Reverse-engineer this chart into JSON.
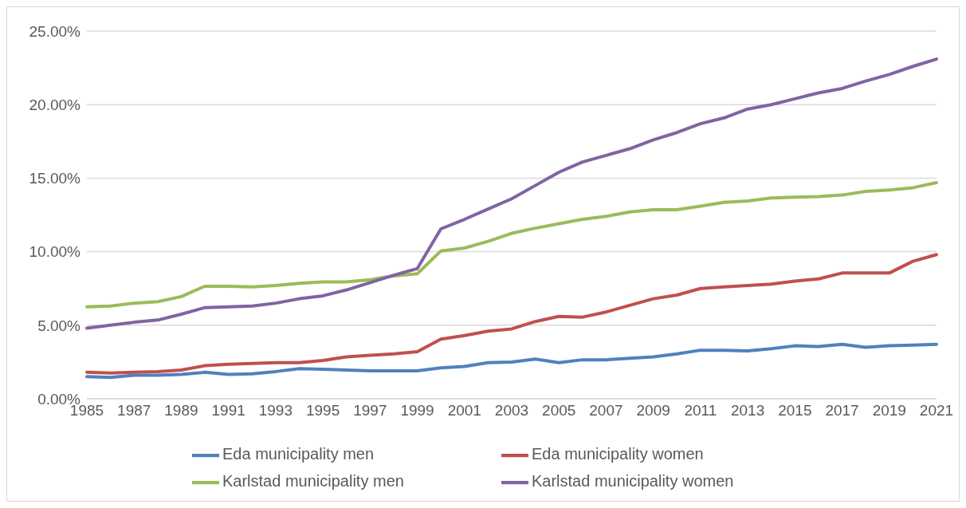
{
  "chart_data": {
    "type": "line",
    "categories": [
      "1985",
      null,
      "1987",
      null,
      "1989",
      null,
      "1991",
      null,
      "1993",
      null,
      "1995",
      null,
      "1997",
      null,
      "1999",
      null,
      "2001",
      null,
      "2003",
      null,
      "2005",
      null,
      "2007",
      null,
      "2009",
      null,
      "2011",
      null,
      "2013",
      null,
      "2015",
      null,
      "2017",
      null,
      "2019",
      null,
      "2021"
    ],
    "series": [
      {
        "name": "Eda municipality men",
        "color": "#4f81bd",
        "values": [
          1.5,
          1.45,
          1.6,
          1.6,
          1.65,
          1.8,
          1.65,
          1.7,
          1.85,
          2.05,
          2.0,
          1.95,
          1.9,
          1.9,
          1.9,
          2.1,
          2.2,
          2.45,
          2.5,
          2.7,
          2.45,
          2.65,
          2.65,
          2.75,
          2.85,
          3.05,
          3.3,
          3.3,
          3.25,
          3.4,
          3.6,
          3.55,
          3.7,
          3.5,
          3.6,
          3.65,
          3.7
        ]
      },
      {
        "name": "Eda municipality women",
        "color": "#c0504d",
        "values": [
          1.8,
          1.75,
          1.8,
          1.85,
          1.95,
          2.25,
          2.35,
          2.4,
          2.45,
          2.45,
          2.6,
          2.85,
          2.95,
          3.05,
          3.2,
          4.05,
          4.3,
          4.6,
          4.75,
          5.25,
          5.6,
          5.55,
          5.9,
          6.35,
          6.8,
          7.05,
          7.5,
          7.6,
          7.7,
          7.8,
          8.0,
          8.15,
          8.55,
          8.55,
          8.55,
          9.35,
          9.8
        ]
      },
      {
        "name": "Karlstad municipality men",
        "color": "#9bbb59",
        "values": [
          6.25,
          6.3,
          6.5,
          6.6,
          6.95,
          7.65,
          7.65,
          7.6,
          7.7,
          7.85,
          7.95,
          7.95,
          8.1,
          8.35,
          8.5,
          10.05,
          10.25,
          10.7,
          11.25,
          11.6,
          11.9,
          12.2,
          12.4,
          12.7,
          12.85,
          12.85,
          13.1,
          13.35,
          13.45,
          13.65,
          13.7,
          13.75,
          13.85,
          14.1,
          14.2,
          14.35,
          14.7
        ]
      },
      {
        "name": "Karlstad municipality women",
        "color": "#8064a2",
        "values": [
          4.8,
          5.0,
          5.2,
          5.35,
          5.75,
          6.2,
          6.25,
          6.3,
          6.5,
          6.8,
          7.0,
          7.4,
          7.9,
          8.4,
          8.85,
          11.55,
          12.2,
          12.9,
          13.6,
          14.5,
          15.4,
          16.1,
          16.55,
          17.0,
          17.6,
          18.1,
          18.7,
          19.1,
          19.7,
          20.0,
          20.4,
          20.8,
          21.1,
          21.6,
          22.05,
          22.6,
          23.1
        ]
      }
    ],
    "ylim": [
      0,
      25
    ],
    "yticks": [
      {
        "value": 0,
        "label": "0.00%"
      },
      {
        "value": 5,
        "label": "5.00%"
      },
      {
        "value": 10,
        "label": "10.00%"
      },
      {
        "value": 15,
        "label": "15.00%"
      },
      {
        "value": 20,
        "label": "20.00%"
      },
      {
        "value": 25,
        "label": "25.00%"
      }
    ],
    "grid": "y",
    "legend": "bottom",
    "marker": "none",
    "line_style": "solid"
  }
}
